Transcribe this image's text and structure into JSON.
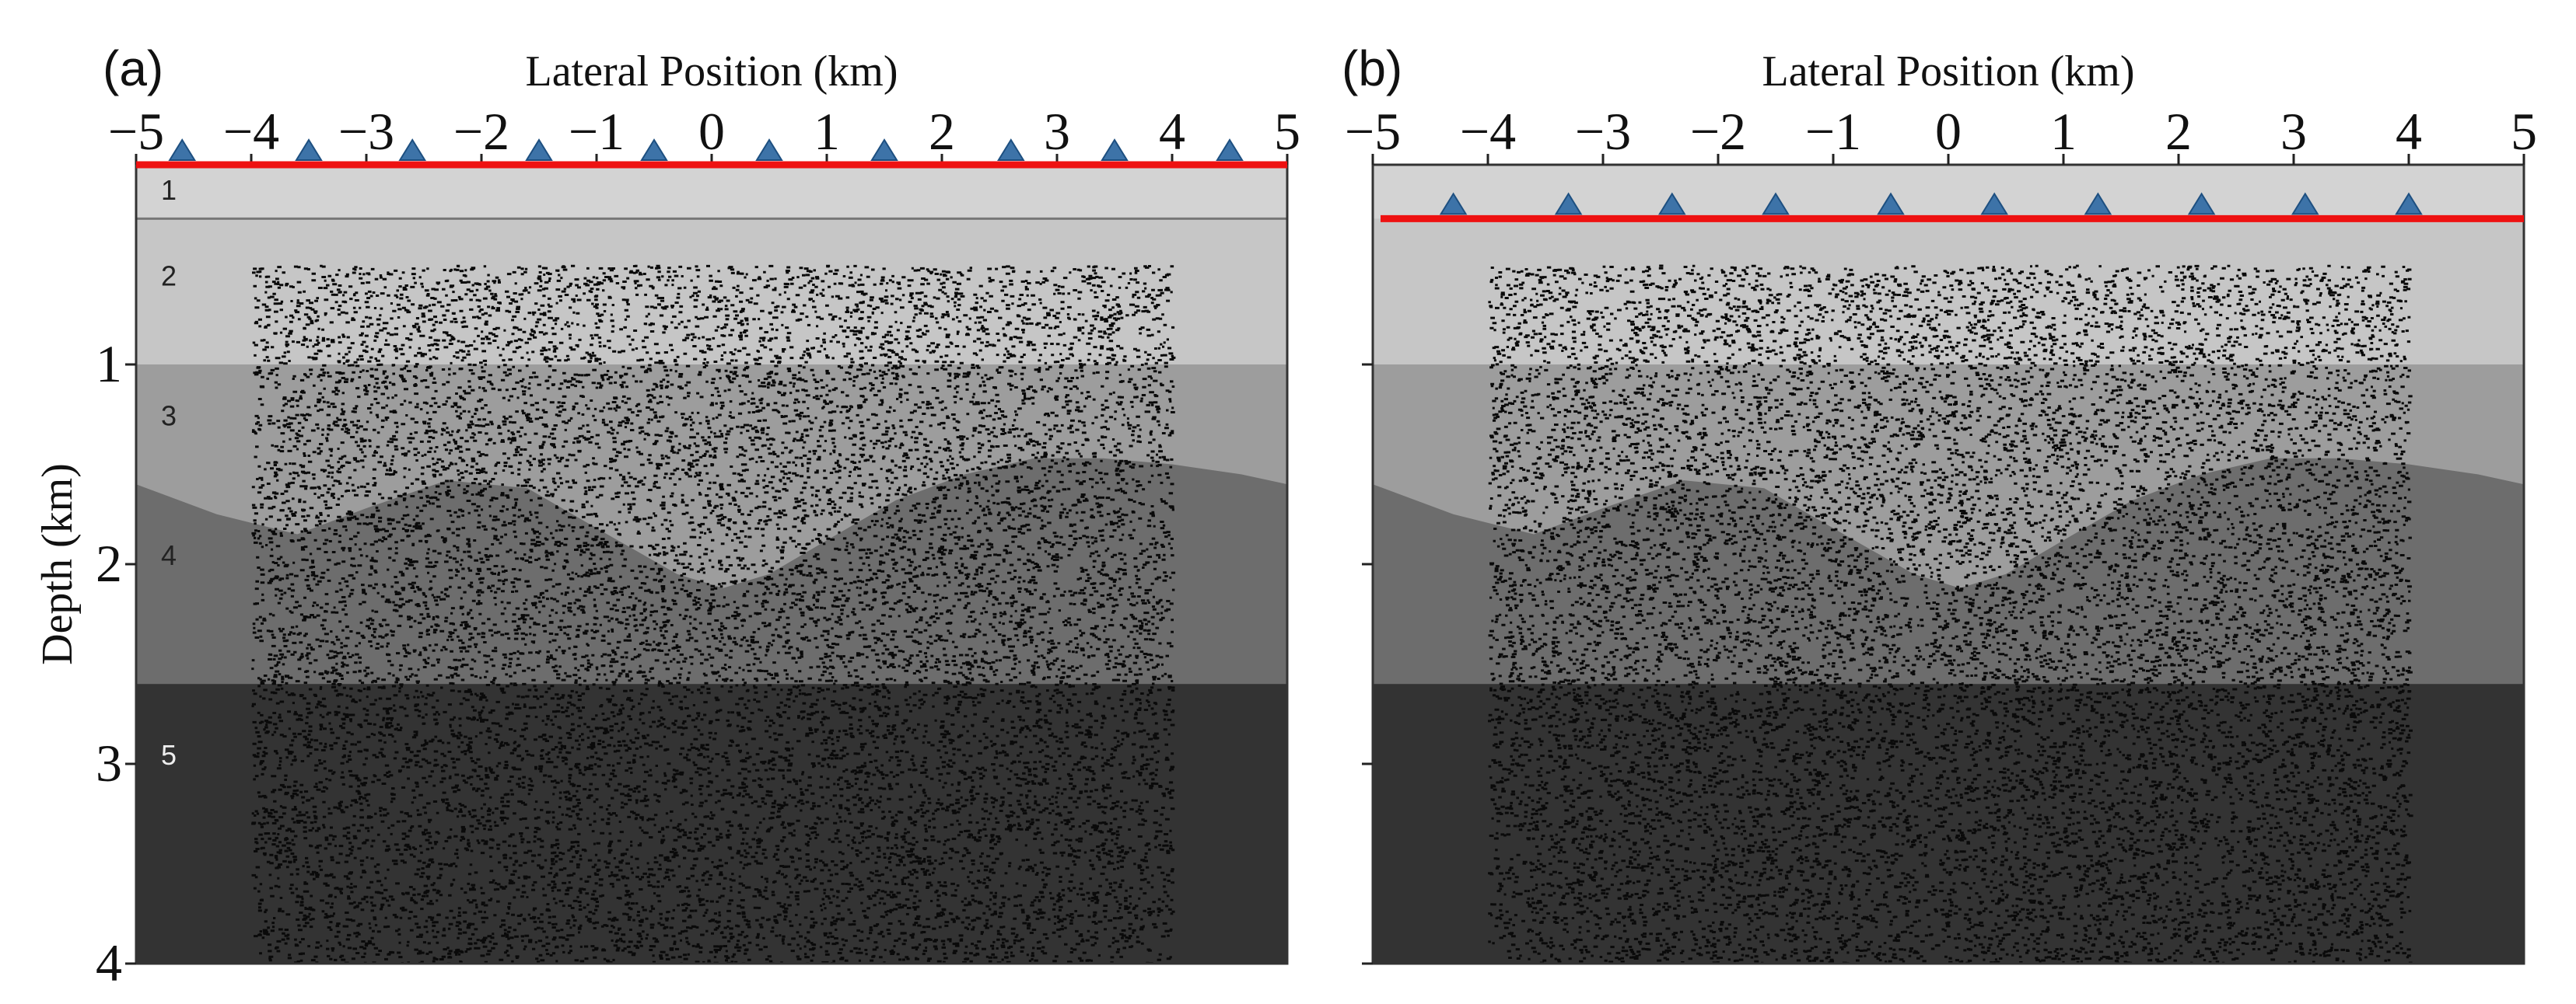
{
  "colors": {
    "layer1": "#d3d3d3",
    "layer2": "#c6c6c6",
    "layer3": "#9d9d9d",
    "layer4": "#6d6d6d",
    "layer5": "#333333",
    "surface_line": "#ee1111",
    "receiver": "#3d73a8",
    "dots": "#0a0a0a",
    "frame": "#333333"
  },
  "panels": [
    {
      "id": "a",
      "label": "(a)",
      "xlabel": "Lateral Position (km)",
      "ylabel": "Depth (km)",
      "xlim": [
        -5,
        5
      ],
      "ylim": [
        0,
        4
      ],
      "x_ticks": [
        "−5",
        "−4",
        "−3",
        "−2",
        "−1",
        "0",
        "1",
        "2",
        "3",
        "4",
        "5"
      ],
      "y_ticks": [
        "1",
        "2",
        "3",
        "4"
      ],
      "show_y_tick_labels": true,
      "layer_labels": [
        "1",
        "2",
        "3",
        "4",
        "5"
      ],
      "receiver_line_depth_km": 0.0,
      "receivers_x_km": [
        -4.6,
        -3.5,
        -2.6,
        -1.5,
        -0.5,
        0.5,
        1.5,
        2.6,
        3.5,
        4.5
      ],
      "show_layer1_boundary": true
    },
    {
      "id": "b",
      "label": "(b)",
      "xlabel": "Lateral Position (km)",
      "ylabel": "",
      "xlim": [
        -5,
        5
      ],
      "ylim": [
        0,
        4
      ],
      "x_ticks": [
        "−5",
        "−4",
        "−3",
        "−2",
        "−1",
        "0",
        "1",
        "2",
        "3",
        "4",
        "5"
      ],
      "y_ticks": [
        "1",
        "2",
        "3",
        "4"
      ],
      "show_y_tick_labels": false,
      "layer_labels": [],
      "receiver_line_depth_km": 0.27,
      "receivers_x_km": [
        -4.3,
        -3.3,
        -2.4,
        -1.5,
        -0.5,
        0.4,
        1.3,
        2.2,
        3.1,
        4.0
      ],
      "show_layer1_boundary": false
    }
  ],
  "model": {
    "layer1_bottom_km": 0.27,
    "layer2_bottom_km": 1.0,
    "layer4_bottom_km": 2.6,
    "layer3_bottom_profile_km": [
      [
        -5.0,
        1.6
      ],
      [
        -4.3,
        1.75
      ],
      [
        -3.6,
        1.85
      ],
      [
        -3.0,
        1.72
      ],
      [
        -2.3,
        1.58
      ],
      [
        -1.6,
        1.62
      ],
      [
        -1.0,
        1.82
      ],
      [
        -0.3,
        2.05
      ],
      [
        0.1,
        2.12
      ],
      [
        0.5,
        2.05
      ],
      [
        1.0,
        1.88
      ],
      [
        1.6,
        1.68
      ],
      [
        2.2,
        1.55
      ],
      [
        2.8,
        1.47
      ],
      [
        3.4,
        1.47
      ],
      [
        4.0,
        1.5
      ],
      [
        4.6,
        1.55
      ],
      [
        5.0,
        1.6
      ]
    ],
    "scatter_region_x_km": [
      -4.0,
      4.0
    ],
    "scatter_region_depth_km": [
      0.5,
      4.0
    ]
  }
}
